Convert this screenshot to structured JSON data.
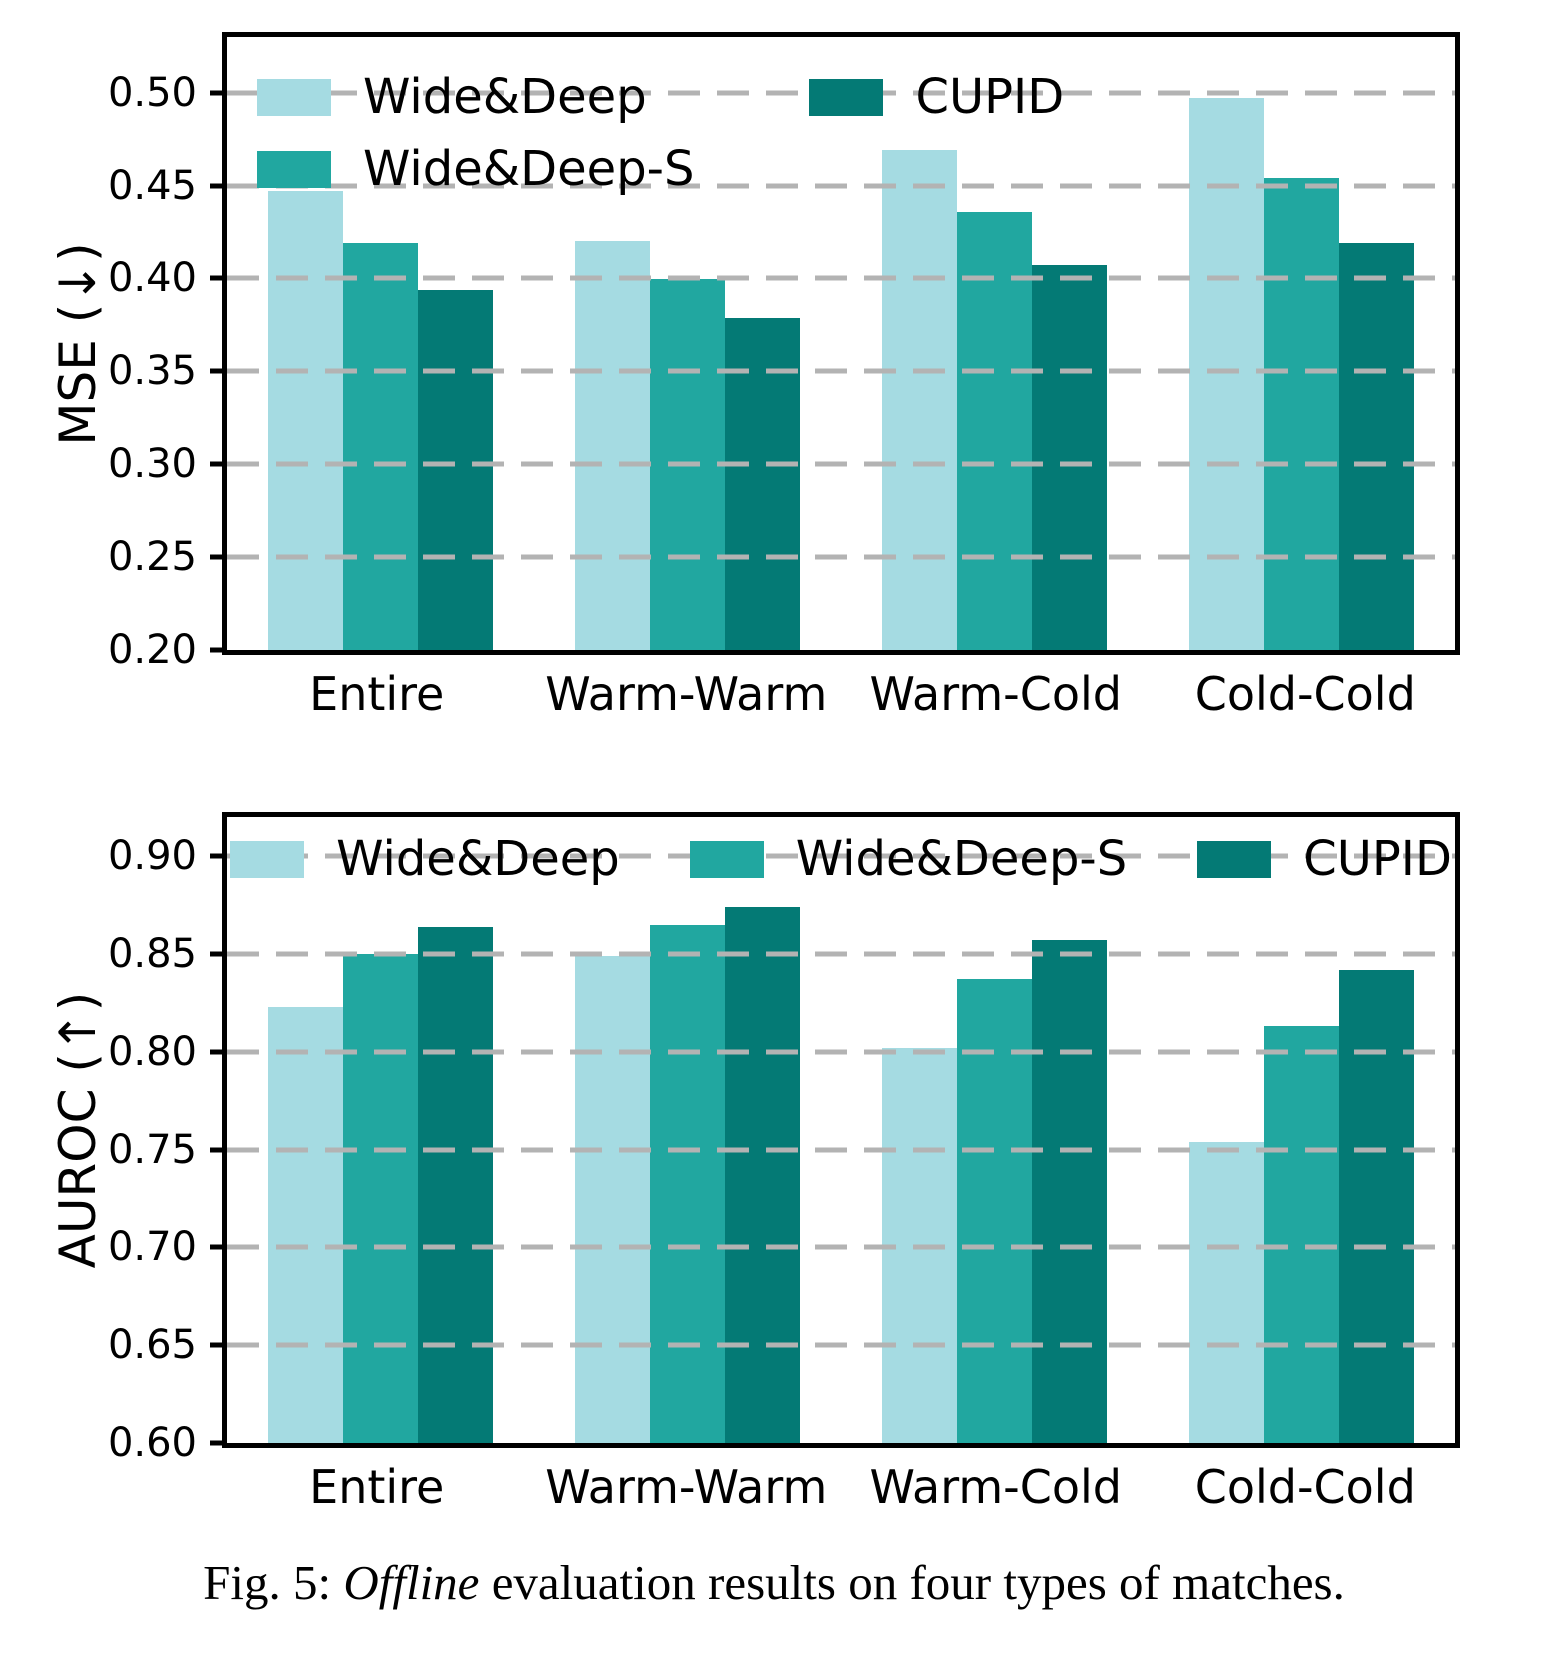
{
  "caption": {
    "prefix": "Fig. 5: ",
    "italic": "Offline",
    "rest": " evaluation results on four types of matches."
  },
  "colors": {
    "series": [
      "#a5dbe2",
      "#21a7a0",
      "#047a75"
    ],
    "gridline": "#b3b3b3",
    "axis": "#000000",
    "background": "#ffffff"
  },
  "chart_data": [
    {
      "type": "bar",
      "title": "",
      "xlabel": "",
      "ylabel": "MSE (↓)",
      "categories": [
        "Entire",
        "Warm-Warm",
        "Warm-Cold",
        "Cold-Cold"
      ],
      "series": [
        {
          "name": "Wide&Deep",
          "values": [
            0.447,
            0.42,
            0.469,
            0.497
          ]
        },
        {
          "name": "Wide&Deep-S",
          "values": [
            0.419,
            0.4,
            0.436,
            0.454
          ]
        },
        {
          "name": "CUPID",
          "values": [
            0.394,
            0.379,
            0.407,
            0.419
          ]
        }
      ],
      "ylim": [
        0.2,
        0.53
      ],
      "yticks": [
        0.2,
        0.25,
        0.3,
        0.35,
        0.4,
        0.45,
        0.5
      ],
      "grid": "horizontal-dashed",
      "legend": {
        "position": "upper left",
        "ncol": 2
      }
    },
    {
      "type": "bar",
      "title": "",
      "xlabel": "",
      "ylabel": "AUROC (↑)",
      "categories": [
        "Entire",
        "Warm-Warm",
        "Warm-Cold",
        "Cold-Cold"
      ],
      "series": [
        {
          "name": "Wide&Deep",
          "values": [
            0.823,
            0.849,
            0.802,
            0.754
          ]
        },
        {
          "name": "Wide&Deep-S",
          "values": [
            0.85,
            0.865,
            0.837,
            0.813
          ]
        },
        {
          "name": "CUPID",
          "values": [
            0.864,
            0.874,
            0.857,
            0.842
          ]
        }
      ],
      "ylim": [
        0.6,
        0.92
      ],
      "yticks": [
        0.6,
        0.65,
        0.7,
        0.75,
        0.8,
        0.85,
        0.9
      ],
      "grid": "horizontal-dashed",
      "legend": {
        "position": "upper center",
        "ncol": 3
      }
    }
  ]
}
